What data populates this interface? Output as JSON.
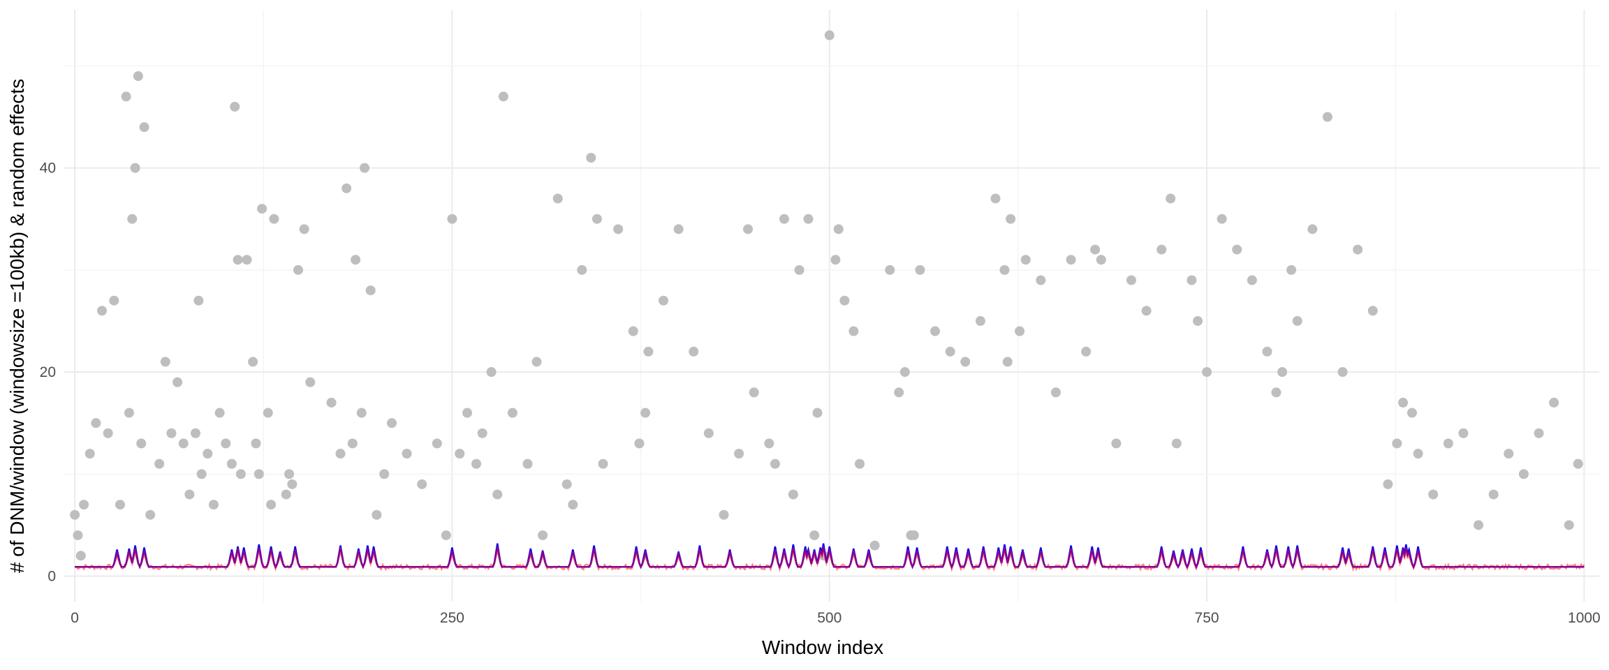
{
  "chart_data": {
    "type": "scatter",
    "title": "",
    "xlabel": "Window index",
    "ylabel": "# of DNM/window (windowsize =100kb) & random effects",
    "xlim": [
      -7,
      1010
    ],
    "ylim": [
      -2.5,
      55.5
    ],
    "x_ticks": [
      0,
      250,
      500,
      750,
      1000
    ],
    "y_ticks": [
      0,
      20,
      40
    ],
    "grid": true,
    "legend": "none",
    "colors": {
      "points": "#bebebe",
      "red_line": "#ff6a6a",
      "blue_line": "#0000ff",
      "purple_line": "#8b008b"
    },
    "series": [
      {
        "type": "scatter",
        "x": [
          0,
          2,
          4,
          6,
          10,
          14,
          18,
          22,
          26,
          30,
          34,
          36,
          38,
          40,
          42,
          44,
          46,
          50,
          56,
          60,
          64,
          68,
          72,
          76,
          80,
          82,
          84,
          88,
          92,
          96,
          100,
          104,
          106,
          108,
          110,
          114,
          118,
          120,
          122,
          124,
          128,
          130,
          132,
          140,
          142,
          144,
          148,
          152,
          156,
          170,
          176,
          180,
          184,
          186,
          190,
          192,
          196,
          200,
          205,
          210,
          220,
          230,
          240,
          246,
          250,
          255,
          260,
          266,
          270,
          276,
          280,
          284,
          290,
          300,
          306,
          310,
          320,
          326,
          330,
          336,
          342,
          346,
          350,
          360,
          370,
          374,
          378,
          380,
          390,
          400,
          410,
          420,
          430,
          440,
          446,
          450,
          460,
          464,
          470,
          476,
          480,
          486,
          490,
          492,
          496,
          500,
          504,
          506,
          510,
          516,
          520,
          530,
          540,
          546,
          550,
          554,
          556,
          560,
          570,
          580,
          590,
          600,
          610,
          616,
          618,
          620,
          626,
          630,
          640,
          650,
          660,
          670,
          676,
          680,
          690,
          700,
          710,
          720,
          726,
          730,
          740,
          744,
          750,
          760,
          770,
          780,
          790,
          796,
          800,
          806,
          810,
          820,
          830,
          840,
          850,
          860,
          870,
          876,
          880,
          886,
          890,
          900,
          910,
          920,
          930,
          940,
          950,
          960,
          970,
          980,
          990,
          996
        ],
        "y": [
          6,
          4,
          2,
          7,
          12,
          15,
          26,
          14,
          27,
          7,
          47,
          16,
          35,
          40,
          49,
          13,
          44,
          6,
          11,
          21,
          14,
          19,
          13,
          8,
          14,
          27,
          10,
          12,
          7,
          16,
          13,
          11,
          46,
          31,
          10,
          31,
          21,
          13,
          10,
          36,
          16,
          7,
          35,
          8,
          10,
          9,
          30,
          34,
          19,
          17,
          12,
          38,
          13,
          31,
          16,
          40,
          28,
          6,
          10,
          15,
          12,
          9,
          13,
          4,
          35,
          12,
          16,
          11,
          14,
          20,
          8,
          47,
          16,
          11,
          21,
          4,
          37,
          9,
          7,
          30,
          41,
          35,
          11,
          34,
          24,
          13,
          16,
          22,
          27,
          34,
          22,
          14,
          6,
          12,
          34,
          18,
          13,
          11,
          35,
          8,
          30,
          35,
          4,
          16,
          2,
          53,
          31,
          34,
          27,
          24,
          11,
          3,
          30,
          18,
          20,
          4,
          4,
          30,
          24,
          22,
          21,
          25,
          37,
          30,
          21,
          35,
          24,
          31,
          29,
          18,
          31,
          22,
          32,
          31,
          13,
          29,
          26,
          32,
          37,
          13,
          29,
          25,
          20,
          35,
          32,
          29,
          22,
          18,
          20,
          30,
          25,
          34,
          45,
          20,
          32,
          26,
          9,
          13,
          17,
          16,
          12,
          8,
          13,
          14,
          5,
          8,
          12,
          10,
          14,
          17,
          5,
          11
        ]
      },
      {
        "name": "",
        "type": "line",
        "color": "#ff6a6a",
        "peaks_x": [],
        "peaks_y": [],
        "baseline": 0.9
      },
      {
        "name": "",
        "type": "line",
        "color": "#0000ff",
        "peaks_x": [
          28,
          36,
          40,
          46,
          104,
          108,
          112,
          122,
          130,
          136,
          146,
          176,
          188,
          194,
          198,
          250,
          280,
          302,
          310,
          330,
          344,
          372,
          378,
          400,
          414,
          434,
          464,
          470,
          476,
          484,
          486,
          490,
          494,
          496,
          500,
          516,
          526,
          552,
          558,
          578,
          584,
          592,
          602,
          612,
          616,
          620,
          628,
          640,
          660,
          674,
          678,
          720,
          728,
          734,
          740,
          746,
          774,
          790,
          796,
          804,
          810,
          840,
          844,
          860,
          868,
          876,
          880,
          882,
          884,
          890
        ],
        "peaks_y": [
          2.6,
          2.7,
          3.0,
          2.8,
          2.6,
          2.9,
          2.8,
          3.1,
          2.9,
          2.4,
          2.9,
          3.0,
          2.7,
          3.0,
          2.9,
          2.8,
          3.2,
          2.7,
          2.5,
          2.6,
          3.0,
          2.9,
          2.6,
          2.4,
          3.0,
          2.6,
          2.9,
          2.7,
          3.1,
          2.9,
          2.6,
          2.6,
          2.8,
          3.2,
          2.9,
          2.7,
          2.6,
          2.9,
          2.8,
          2.9,
          2.8,
          2.7,
          2.9,
          2.8,
          3.1,
          2.9,
          2.6,
          2.8,
          3.0,
          2.9,
          2.8,
          2.9,
          2.5,
          2.6,
          2.7,
          2.8,
          2.9,
          2.6,
          3.0,
          2.9,
          3.0,
          2.8,
          2.7,
          2.9,
          2.8,
          3.0,
          2.8,
          3.1,
          2.6,
          2.9
        ],
        "baseline": 0.9
      },
      {
        "name": "",
        "type": "line",
        "color": "#8b008b",
        "peaks_x": [
          28,
          36,
          40,
          46,
          104,
          108,
          112,
          122,
          130,
          136,
          146,
          176,
          188,
          194,
          198,
          250,
          280,
          302,
          310,
          330,
          344,
          372,
          378,
          400,
          414,
          434,
          464,
          470,
          476,
          484,
          486,
          490,
          494,
          496,
          500,
          516,
          526,
          552,
          558,
          578,
          584,
          592,
          602,
          612,
          616,
          620,
          628,
          640,
          660,
          674,
          678,
          720,
          728,
          734,
          740,
          746,
          774,
          790,
          796,
          804,
          810,
          840,
          844,
          860,
          868,
          876,
          880,
          882,
          884,
          890
        ],
        "peaks_y": [
          2.3,
          2.5,
          2.7,
          2.5,
          2.4,
          2.7,
          2.5,
          2.8,
          2.6,
          2.2,
          2.6,
          2.8,
          2.5,
          2.7,
          2.6,
          2.5,
          2.9,
          2.4,
          2.3,
          2.4,
          2.7,
          2.6,
          2.3,
          2.2,
          2.7,
          2.4,
          2.6,
          2.5,
          2.8,
          2.6,
          2.4,
          2.4,
          2.5,
          2.9,
          2.6,
          2.5,
          2.3,
          2.6,
          2.5,
          2.6,
          2.5,
          2.4,
          2.6,
          2.5,
          2.8,
          2.6,
          2.3,
          2.5,
          2.7,
          2.6,
          2.5,
          2.6,
          2.2,
          2.3,
          2.4,
          2.5,
          2.6,
          2.4,
          2.7,
          2.6,
          2.7,
          2.5,
          2.4,
          2.6,
          2.5,
          2.7,
          2.5,
          2.8,
          2.3,
          2.6
        ],
        "baseline": 0.9
      }
    ]
  }
}
